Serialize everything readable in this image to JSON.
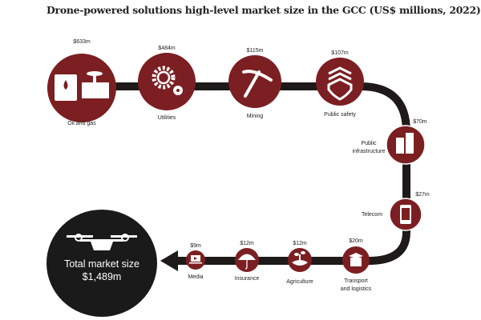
{
  "title": "Drone-powered solutions high-level market size in the GCC (US$ millions, 2022)",
  "colors": {
    "node": "#7b1f22",
    "path": "#1e1a1a",
    "total": "#1a1a1a"
  },
  "sectors": [
    {
      "name": "Oil and gas",
      "value": "$633m",
      "icon": "oil-barrel-valve-icon"
    },
    {
      "name": "Utilities",
      "value": "$484m",
      "icon": "gears-icon"
    },
    {
      "name": "Mining",
      "value": "$115m",
      "icon": "pickaxe-icon"
    },
    {
      "name": "Public safety",
      "value": "$107m",
      "icon": "shield-chevron-icon"
    },
    {
      "name_lines": [
        "Public",
        "infrastructure"
      ],
      "value": "$70m",
      "icon": "buildings-icon"
    },
    {
      "name": "Telecom",
      "value": "$27m",
      "icon": "smartphone-icon"
    },
    {
      "name_lines": [
        "Transport",
        "and logistics"
      ],
      "value": "$20m",
      "icon": "package-icon"
    },
    {
      "name": "Agriculture",
      "value": "$12m",
      "icon": "sprout-icon"
    },
    {
      "name": "Insurance",
      "value": "$12m",
      "icon": "umbrella-icon"
    },
    {
      "name": "Media",
      "value": "$9m",
      "icon": "laptop-play-icon"
    }
  ],
  "total": {
    "label": "Total market size",
    "value": "$1,489m",
    "icon": "drone-icon"
  }
}
